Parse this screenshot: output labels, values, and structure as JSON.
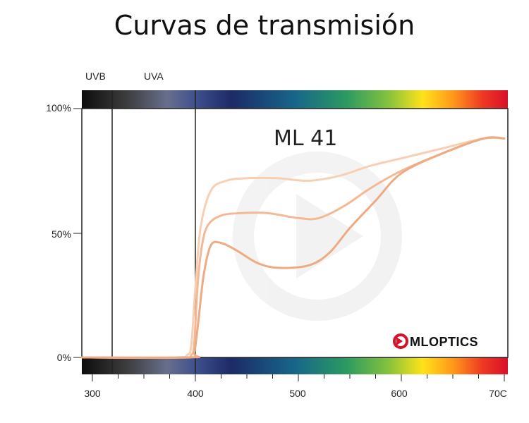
{
  "page": {
    "title": "Curvas de transmisión"
  },
  "chart_data": {
    "type": "line",
    "title": "Curvas de transmisión",
    "annotation": "ML 41",
    "brand": "MLOPTICS",
    "bands": [
      "UVB",
      "UVA"
    ],
    "band_boundaries_nm": [
      320,
      400
    ],
    "xlim": [
      290,
      700
    ],
    "ylim": [
      0,
      100
    ],
    "x_ticks": [
      "300",
      "400",
      "500",
      "600",
      "70C"
    ],
    "x_tick_values": [
      300,
      400,
      500,
      600,
      700
    ],
    "y_ticks": [
      "0%",
      "50%",
      "100%"
    ],
    "y_tick_values": [
      0,
      50,
      100
    ],
    "line_color": "#f2b48c",
    "series": [
      {
        "x": [
          290,
          380,
          392,
          396,
          400,
          405,
          415,
          430,
          450,
          480,
          510,
          540,
          570,
          600,
          640,
          680,
          700
        ],
        "y": [
          0,
          0,
          1,
          5,
          28,
          52,
          67,
          71,
          72,
          72,
          71,
          73,
          77,
          80,
          84,
          88,
          88
        ]
      },
      {
        "x": [
          290,
          385,
          396,
          399,
          402,
          406,
          412,
          425,
          445,
          470,
          500,
          520,
          545,
          570,
          600,
          640,
          680,
          700
        ],
        "y": [
          0,
          0,
          1,
          6,
          28,
          44,
          53,
          57,
          58,
          58,
          56,
          56,
          61,
          68,
          75,
          82,
          88,
          88
        ]
      },
      {
        "x": [
          290,
          395,
          399,
          403,
          408,
          415,
          425,
          440,
          460,
          480,
          510,
          530,
          550,
          575,
          600,
          640,
          680,
          700
        ],
        "y": [
          0,
          0,
          2,
          15,
          33,
          45,
          46,
          43,
          38,
          36,
          37,
          42,
          52,
          63,
          74,
          82,
          88,
          88
        ]
      }
    ]
  }
}
